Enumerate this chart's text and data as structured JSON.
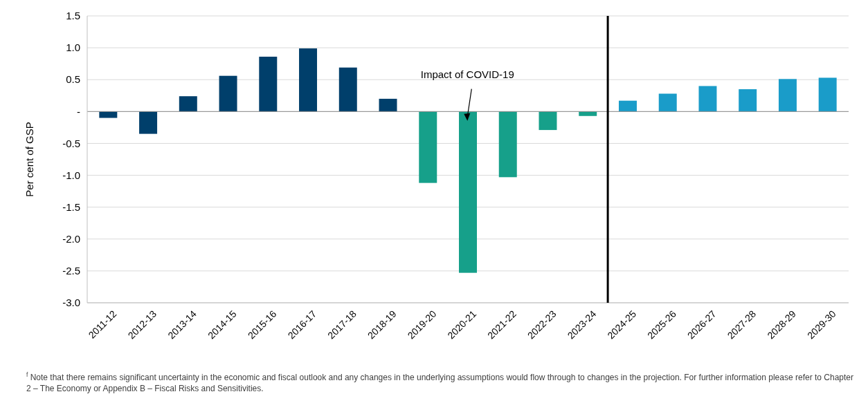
{
  "chart_data": {
    "type": "bar",
    "ylabel": "Per cent of GSP",
    "categories": [
      "2011-12",
      "2012-13",
      "2013-14",
      "2014-15",
      "2015-16",
      "2016-17",
      "2017-18",
      "2018-19",
      "2019-20",
      "2020-21",
      "2021-22",
      "2022-23",
      "2023-24",
      "2024-25",
      "2025-26",
      "2026-27",
      "2027-28",
      "2028-29",
      "2029-30"
    ],
    "values": [
      -0.1,
      -0.35,
      0.24,
      0.56,
      0.86,
      0.99,
      0.69,
      0.2,
      -1.12,
      -2.53,
      -1.03,
      -0.29,
      -0.07,
      0.17,
      0.28,
      0.4,
      0.35,
      0.51,
      0.53
    ],
    "colors": [
      "#003f6b",
      "#003f6b",
      "#003f6b",
      "#003f6b",
      "#003f6b",
      "#003f6b",
      "#003f6b",
      "#003f6b",
      "#16a08a",
      "#16a08a",
      "#16a08a",
      "#16a08a",
      "#16a08a",
      "#1a9cc9",
      "#1a9cc9",
      "#1a9cc9",
      "#1a9cc9",
      "#1a9cc9",
      "#1a9cc9"
    ],
    "ylim": [
      -3,
      1.5
    ],
    "yticks": [
      {
        "value": 1.5,
        "label": "1.5"
      },
      {
        "value": 1,
        "label": "1.0"
      },
      {
        "value": 0.5,
        "label": "0.5"
      },
      {
        "value": 0,
        "label": "-"
      },
      {
        "value": -0.5,
        "label": "-0.5"
      },
      {
        "value": -1,
        "label": "-1.0"
      },
      {
        "value": -1.5,
        "label": "-1.5"
      },
      {
        "value": -2,
        "label": "-2.0"
      },
      {
        "value": -2.5,
        "label": "-2.5"
      },
      {
        "value": -3,
        "label": "-3.0"
      }
    ],
    "grid": "y",
    "ref_lines": [
      {
        "axis": "x",
        "value": "2024-25",
        "color": "#000000"
      }
    ],
    "annotations": [
      "Impact of COVID-19",
      "$^{f}$ Note that there remains significant uncertainty in the economic and fiscal outlook and any changes in the underlying assumptions would flow through to changes in the projection. For further information please refer to Chapter 2 – The Economy or Appendix B – Fiscal Risks and Sensitivities."
    ]
  }
}
